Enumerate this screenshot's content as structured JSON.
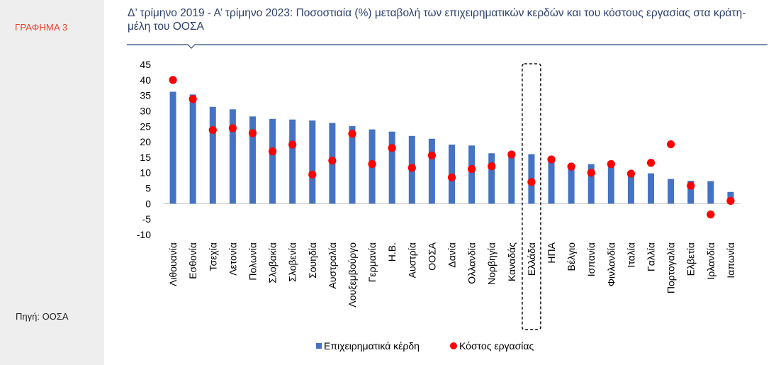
{
  "sidebar": {
    "figure_label": "ΓΡΑΦΗΜΑ 3",
    "source": "Πηγή: ΟΟΣΑ"
  },
  "colors": {
    "bar": "#4472c4",
    "dot": "#ff0000",
    "accent": "#e8422a",
    "title": "#2d3f6c",
    "rule": "#2f4a7a"
  },
  "chart_data": {
    "type": "bar",
    "title": "Δ’ τρίμηνο 2019 - Α’ τρίμηνο 2023: Ποσοστιαία (%) μεταβολή των επιχειρηματικών κερδών και του κόστους εργασίας στα κράτη-μέλη του ΟΟΣΑ",
    "categories": [
      "Λιθουανία",
      "Εσθονία",
      "Τσεχία",
      "Λετονία",
      "Πολωνία",
      "Σλοβακία",
      "Σλοβενία",
      "Σουηδία",
      "Αυστραλία",
      "Λουξεμβούργο",
      "Γερμανία",
      "Η.Β.",
      "Αυστρία",
      "ΟΟΣΑ",
      "Δανία",
      "Ολλανδία",
      "Νορβηγία",
      "Καναδάς",
      "Ελλάδα",
      "ΗΠΑ",
      "Βέλγιο",
      "Ισπανία",
      "Φινλανδία",
      "Ιταλία",
      "Γαλλία",
      "Πορτογαλία",
      "Ελβετία",
      "Ιρλανδία",
      "Ιαπωνία"
    ],
    "series": [
      {
        "name": "Επιχειρηματικά κέρδη",
        "kind": "bar",
        "values": [
          36.2,
          35.3,
          31.3,
          30.5,
          28.2,
          27.4,
          27.2,
          26.9,
          26.1,
          25.1,
          24.0,
          23.3,
          21.9,
          21.0,
          19.1,
          18.8,
          16.3,
          15.8,
          16.0,
          14.0,
          12.3,
          12.8,
          12.2,
          9.9,
          9.8,
          8.0,
          7.4,
          7.3,
          3.8
        ]
      },
      {
        "name": "Κόστος εργασίας",
        "kind": "dot",
        "values": [
          40.0,
          33.8,
          23.8,
          24.4,
          22.8,
          16.9,
          19.1,
          9.4,
          13.9,
          22.6,
          12.8,
          18.0,
          11.6,
          15.6,
          8.5,
          11.2,
          12.1,
          15.9,
          7.0,
          14.3,
          12.0,
          10.0,
          12.8,
          9.7,
          13.2,
          19.2,
          5.8,
          -3.5,
          0.9
        ]
      }
    ],
    "yticks": [
      45,
      40,
      35,
      30,
      25,
      20,
      15,
      10,
      5,
      0,
      -5,
      -10
    ],
    "ylim": [
      -10,
      45
    ],
    "highlight": "Ελλάδα",
    "legend_position": "bottom",
    "grid": false
  }
}
